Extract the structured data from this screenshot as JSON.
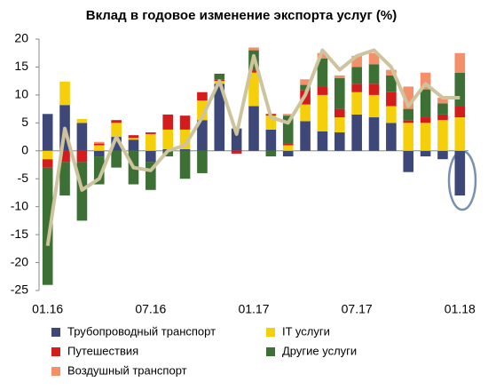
{
  "chart_data": {
    "type": "stacked-bar-line",
    "title": "Вклад в годовое изменение экспорта услуг (%)",
    "categories": [
      "01.16",
      null,
      null,
      null,
      null,
      null,
      "07.16",
      null,
      null,
      null,
      null,
      null,
      "01.17",
      null,
      null,
      null,
      null,
      null,
      "07.17",
      null,
      null,
      null,
      null,
      null,
      "01.18"
    ],
    "series": [
      {
        "name": "Трубопроводный транспорт",
        "color": "#3d4878",
        "values": [
          6.6,
          8.2,
          5,
          -1,
          2.5,
          2,
          -2,
          0.3,
          0.3,
          5.5,
          12,
          4,
          8,
          3.8,
          -1,
          5.3,
          3.5,
          3.3,
          6.5,
          6,
          5,
          -3.8,
          -1,
          -1.5,
          -8
        ]
      },
      {
        "name": "IT услуги",
        "color": "#f5cf0a",
        "values": [
          -1.5,
          4.2,
          0.7,
          1,
          2.5,
          0.3,
          3,
          3.5,
          3.5,
          3.5,
          0.5,
          0,
          6,
          2.5,
          1,
          3,
          6.5,
          2.7,
          4,
          4,
          3,
          5,
          5,
          5.5,
          6
        ]
      },
      {
        "name": "Путешествия",
        "color": "#d51c1c",
        "values": [
          -1.5,
          -2,
          -2,
          0.3,
          0.5,
          0.5,
          0.3,
          2.7,
          2.5,
          1.5,
          0.3,
          -0.5,
          0.5,
          0.3,
          0.3,
          2.5,
          1.5,
          1.5,
          1.5,
          2,
          2.5,
          0.5,
          1,
          1,
          2
        ]
      },
      {
        "name": "Другие услуги",
        "color": "#3c7035",
        "values": [
          -21,
          -6,
          -10.5,
          -5,
          -3,
          -6,
          -5,
          -1,
          -5,
          -4,
          1,
          0,
          3.5,
          -1,
          5,
          1,
          5,
          5.5,
          3,
          3.5,
          3,
          2,
          5,
          2,
          6
        ]
      },
      {
        "name": "Воздушный транспорт",
        "color": "#f3906a",
        "values": [
          0,
          0,
          0,
          0.3,
          0,
          0,
          0,
          0,
          0,
          0,
          0,
          0,
          0.5,
          0,
          0.3,
          1,
          1,
          0.5,
          2,
          2,
          1,
          4,
          3,
          1,
          3.5
        ]
      },
      {
        "type": "line",
        "color": "#cdc49e",
        "values": [
          -17,
          4,
          -7,
          -5,
          2.5,
          -3,
          -3.5,
          0,
          1,
          6,
          12.5,
          3,
          17,
          6,
          5,
          10,
          18,
          14.5,
          17,
          18,
          15,
          8,
          12,
          9.5,
          9.5
        ]
      }
    ],
    "ylim": [
      -25,
      20
    ],
    "yticks": [
      -25,
      -20,
      -15,
      -10,
      -5,
      0,
      5,
      10,
      15,
      20
    ]
  }
}
